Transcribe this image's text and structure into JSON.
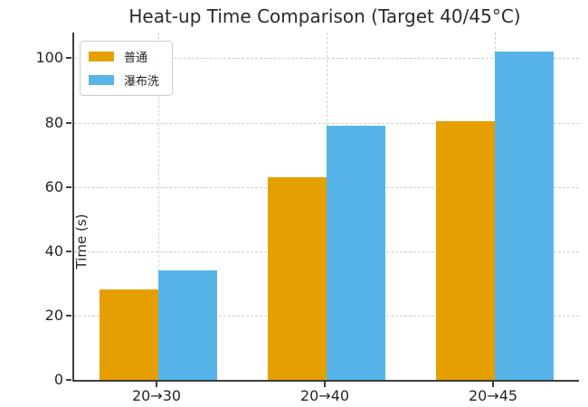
{
  "figure": {
    "title": "Heat-up Time Comparison (Target 40/45°C)"
  },
  "chart_data": {
    "type": "bar",
    "title": "Heat-up Time Comparison (Target 40/45°C)",
    "categories": [
      "20→30",
      "20→40",
      "20→45"
    ],
    "series": [
      {
        "key": "normal",
        "name": "普通",
        "color": "#E69F00",
        "values": [
          28,
          63,
          80.5
        ]
      },
      {
        "key": "waterfall-wash",
        "name": "瀑布洗",
        "color": "#56B4E9",
        "values": [
          34,
          79,
          102
        ]
      }
    ],
    "xlabel": "",
    "ylabel": "Time (s)",
    "yticks": [
      0,
      20,
      40,
      60,
      80,
      100
    ],
    "ylim": [
      0,
      108
    ],
    "grid": {
      "horizontal": true,
      "vertical": true,
      "style": "dashed",
      "color": "#cfcfcf"
    },
    "legend": {
      "position": "upper-left",
      "entries": [
        "普通",
        "瀑布洗"
      ]
    }
  },
  "palette": {
    "background": "#ffffff",
    "axis": "#3d3d3d",
    "text": "#262626",
    "grid": "#cfcfcf",
    "legend_border": "#cccccc",
    "series_normal": "#E69F00",
    "series_waterfall_wash": "#56B4E9"
  }
}
